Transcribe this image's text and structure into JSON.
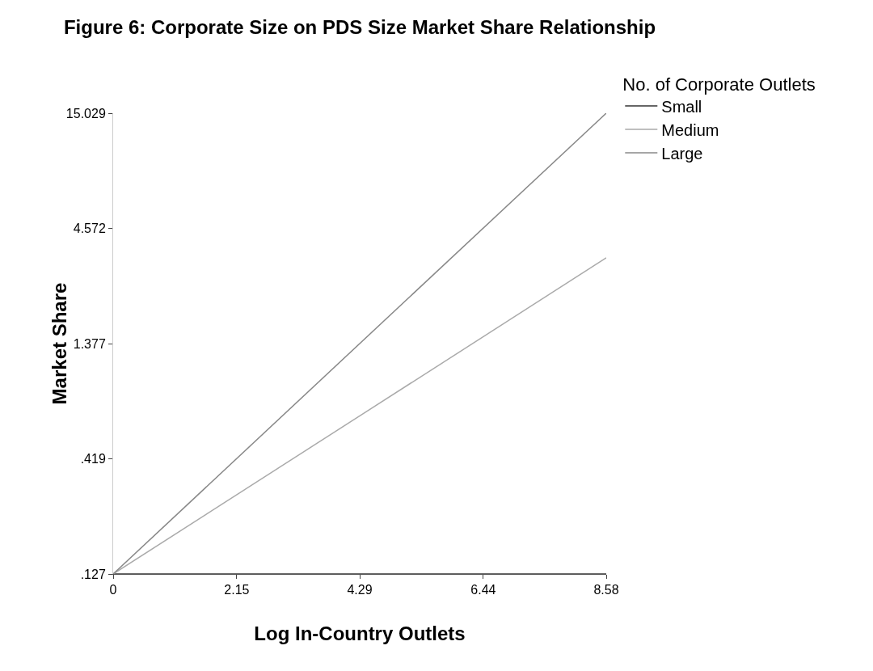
{
  "chart_data": {
    "type": "line",
    "title": "Figure 6: Corporate Size on PDS Size Market Share Relationship",
    "xlabel": "Log In-Country Outlets",
    "ylabel": "Market Share",
    "legend_title": "No. of Corporate Outlets",
    "x": [
      0,
      8.58
    ],
    "series": [
      {
        "name": "Small",
        "color": "#333333",
        "values": [
          0.127,
          0.127
        ]
      },
      {
        "name": "Medium",
        "color": "#aaaaaa",
        "values": [
          0.127,
          3.36
        ]
      },
      {
        "name": "Large",
        "color": "#888888",
        "values": [
          0.127,
          15.029
        ]
      }
    ],
    "log": "y",
    "xlim": [
      0,
      8.58
    ],
    "xticks": [
      0,
      2.15,
      4.29,
      6.44,
      8.58
    ],
    "ylim": [
      0.127,
      15.029
    ],
    "yticks": [
      {
        "value": 0.127,
        "label": ".127"
      },
      {
        "value": 0.419,
        "label": ".419"
      },
      1.377,
      4.572,
      15.029
    ],
    "grid": false,
    "legend": "top right",
    "marker": "none",
    "line_style": "solid"
  }
}
